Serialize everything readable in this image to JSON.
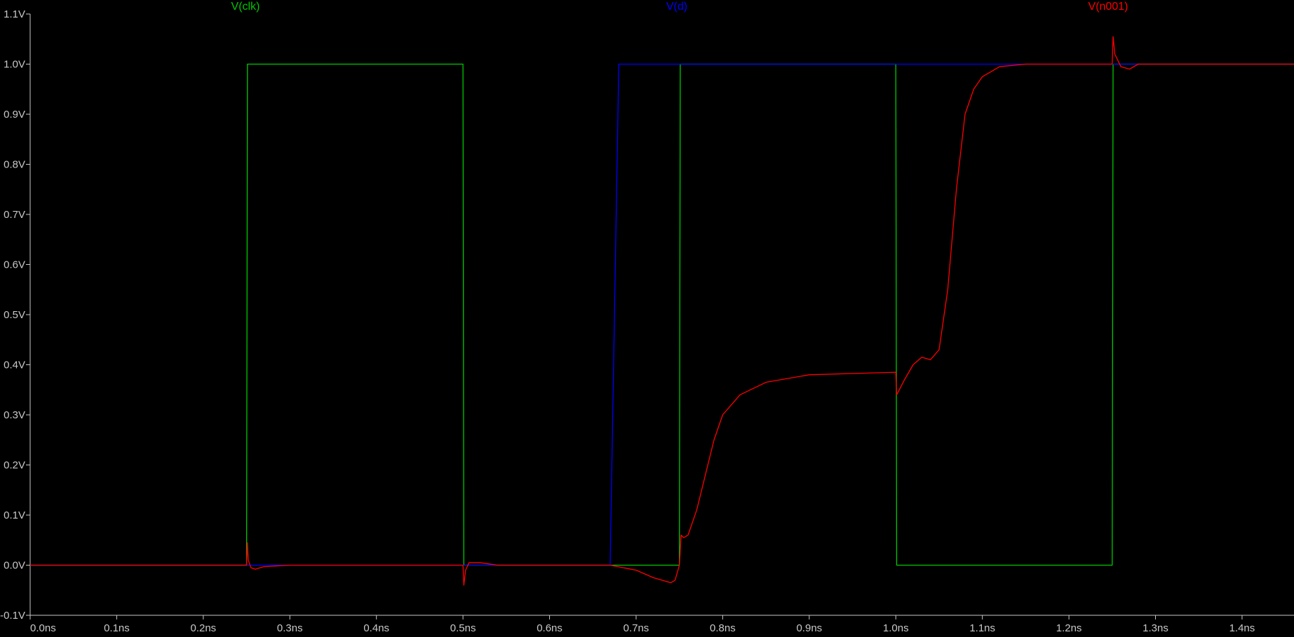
{
  "chart_data": {
    "type": "line",
    "xlim": [
      0,
      1.46
    ],
    "ylim": [
      -0.1,
      1.1
    ],
    "x_ticks": [
      "0.0ns",
      "0.1ns",
      "0.2ns",
      "0.3ns",
      "0.4ns",
      "0.5ns",
      "0.6ns",
      "0.7ns",
      "0.8ns",
      "0.9ns",
      "1.0ns",
      "1.1ns",
      "1.2ns",
      "1.3ns",
      "1.4ns"
    ],
    "y_ticks": [
      "-0.1V",
      "0.0V",
      "0.1V",
      "0.2V",
      "0.3V",
      "0.4V",
      "0.5V",
      "0.6V",
      "0.7V",
      "0.8V",
      "0.9V",
      "1.0V",
      "1.1V"
    ],
    "grid": false,
    "legend_placement": "top",
    "series": [
      {
        "name": "V(clk)",
        "color": "#00c800",
        "x": [
          0.0,
          0.25,
          0.251,
          0.5,
          0.501,
          0.75,
          0.751,
          1.0,
          1.001,
          1.25,
          1.251,
          1.46
        ],
        "y": [
          0.0,
          0.0,
          1.0,
          1.0,
          0.0,
          0.0,
          1.0,
          1.0,
          0.0,
          0.0,
          1.0,
          1.0
        ]
      },
      {
        "name": "V(d)",
        "color": "#0000ff",
        "x": [
          0.0,
          0.67,
          0.68,
          1.46
        ],
        "y": [
          0.0,
          0.0,
          1.0,
          1.0
        ]
      },
      {
        "name": "V(n001)",
        "color": "#ff0000",
        "x": [
          0.0,
          0.25,
          0.251,
          0.252,
          0.255,
          0.26,
          0.27,
          0.3,
          0.5,
          0.501,
          0.503,
          0.507,
          0.52,
          0.54,
          0.6,
          0.67,
          0.7,
          0.72,
          0.74,
          0.745,
          0.75,
          0.752,
          0.755,
          0.76,
          0.77,
          0.78,
          0.79,
          0.8,
          0.82,
          0.85,
          0.9,
          1.0,
          1.001,
          1.01,
          1.02,
          1.03,
          1.04,
          1.05,
          1.06,
          1.07,
          1.08,
          1.09,
          1.1,
          1.12,
          1.15,
          1.2,
          1.25,
          1.251,
          1.253,
          1.26,
          1.27,
          1.28,
          1.3,
          1.46
        ],
        "y": [
          0.0,
          0.0,
          0.045,
          0.01,
          -0.005,
          -0.008,
          -0.003,
          0.0,
          0.0,
          -0.04,
          -0.01,
          0.005,
          0.005,
          0.0,
          0.0,
          0.0,
          -0.01,
          -0.025,
          -0.035,
          -0.03,
          0.0,
          0.06,
          0.055,
          0.06,
          0.11,
          0.18,
          0.25,
          0.3,
          0.34,
          0.365,
          0.38,
          0.385,
          0.34,
          0.37,
          0.4,
          0.415,
          0.41,
          0.43,
          0.55,
          0.75,
          0.9,
          0.95,
          0.975,
          0.995,
          1.0,
          1.0,
          1.0,
          1.055,
          1.02,
          0.995,
          0.99,
          1.0,
          1.0,
          1.0
        ]
      }
    ]
  }
}
